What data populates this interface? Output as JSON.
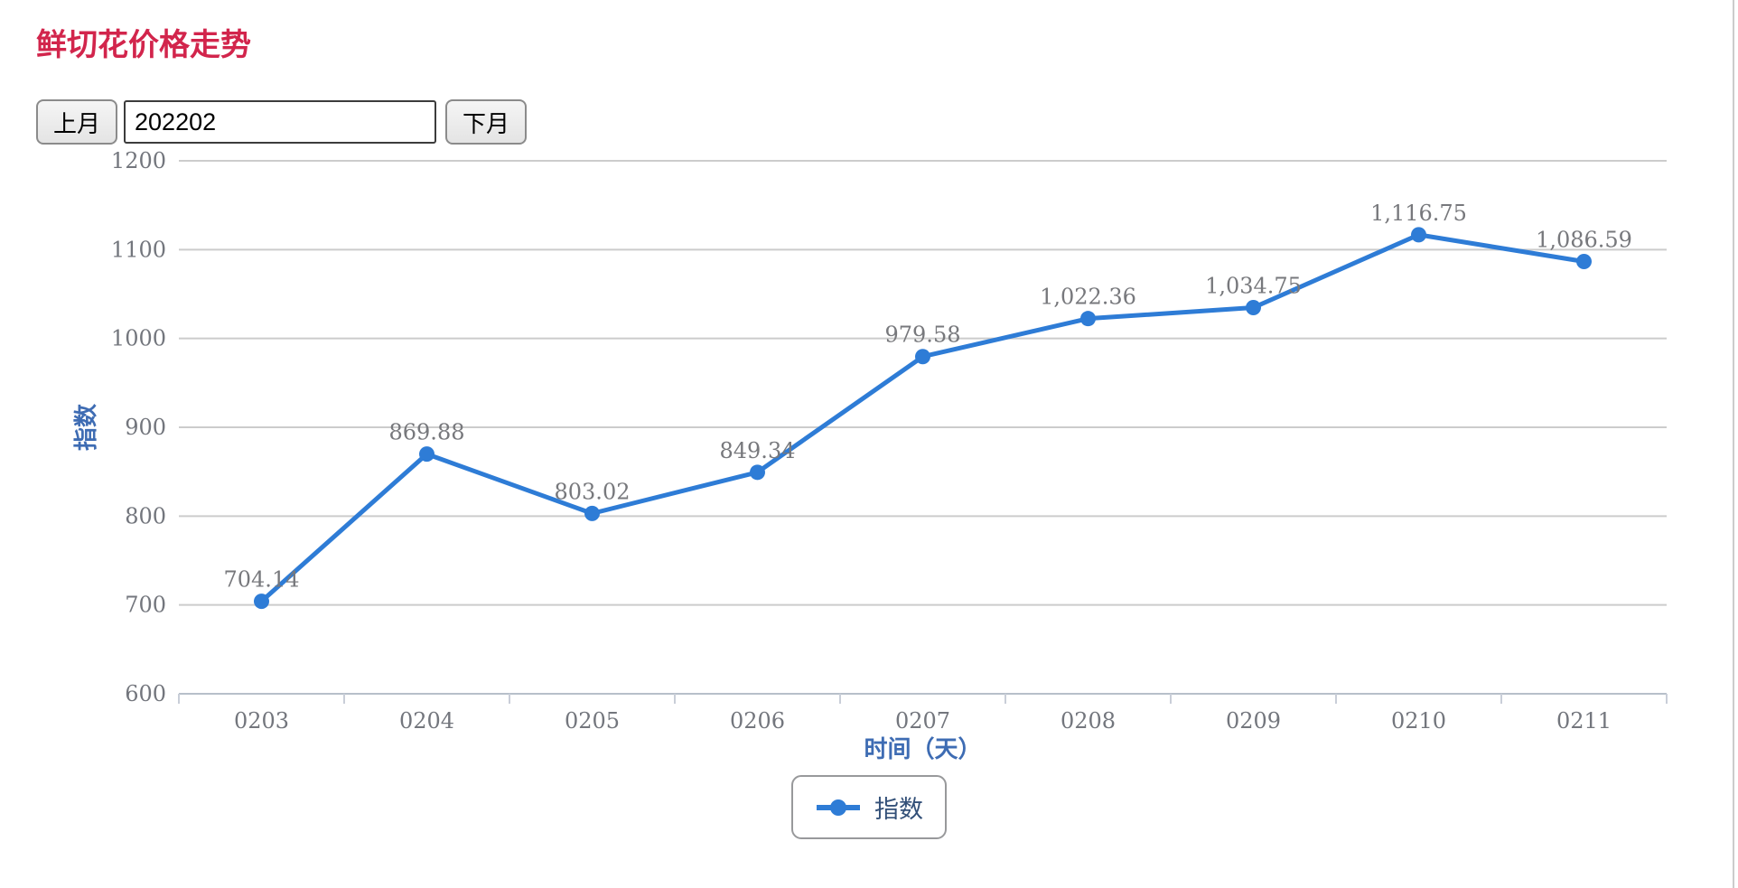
{
  "page": {
    "title": "鲜切花价格走势"
  },
  "controls": {
    "prev_button_label": "上月",
    "month_input_value": "202202",
    "next_button_label": "下月"
  },
  "chart_data": {
    "type": "line",
    "categories": [
      "0203",
      "0204",
      "0205",
      "0206",
      "0207",
      "0208",
      "0209",
      "0210",
      "0211"
    ],
    "series": [
      {
        "name": "指数",
        "values": [
          704.14,
          869.88,
          803.02,
          849.34,
          979.58,
          1022.36,
          1034.75,
          1116.75,
          1086.59
        ],
        "labels": [
          "704.14",
          "869.88",
          "803.02",
          "849.34",
          "979.58",
          "1,022.36",
          "1,034.75",
          "1,116.75",
          "1,086.59"
        ],
        "color": "#2e7cd6"
      }
    ],
    "title": "",
    "xlabel": "时间（天）",
    "ylabel": "指数",
    "ylim": [
      600,
      1200
    ],
    "ytick_interval": 100,
    "yticks": [
      "600",
      "700",
      "800",
      "900",
      "1000",
      "1100",
      "1200"
    ],
    "grid": true,
    "legend": {
      "position": "bottom",
      "items": [
        "指数"
      ]
    }
  },
  "colors": {
    "title_red": "#d2254c",
    "series_blue": "#2e7cd6",
    "axis_title_blue": "#3e6cb3",
    "tick_label_gray": "#73767d",
    "data_label_gray": "#77787c",
    "gridline_gray": "#cccccc",
    "axis_line_gray": "#b7bfca",
    "legend_text": "#335078"
  },
  "icons": {
    "legend_marker": "line-dot-marker"
  }
}
